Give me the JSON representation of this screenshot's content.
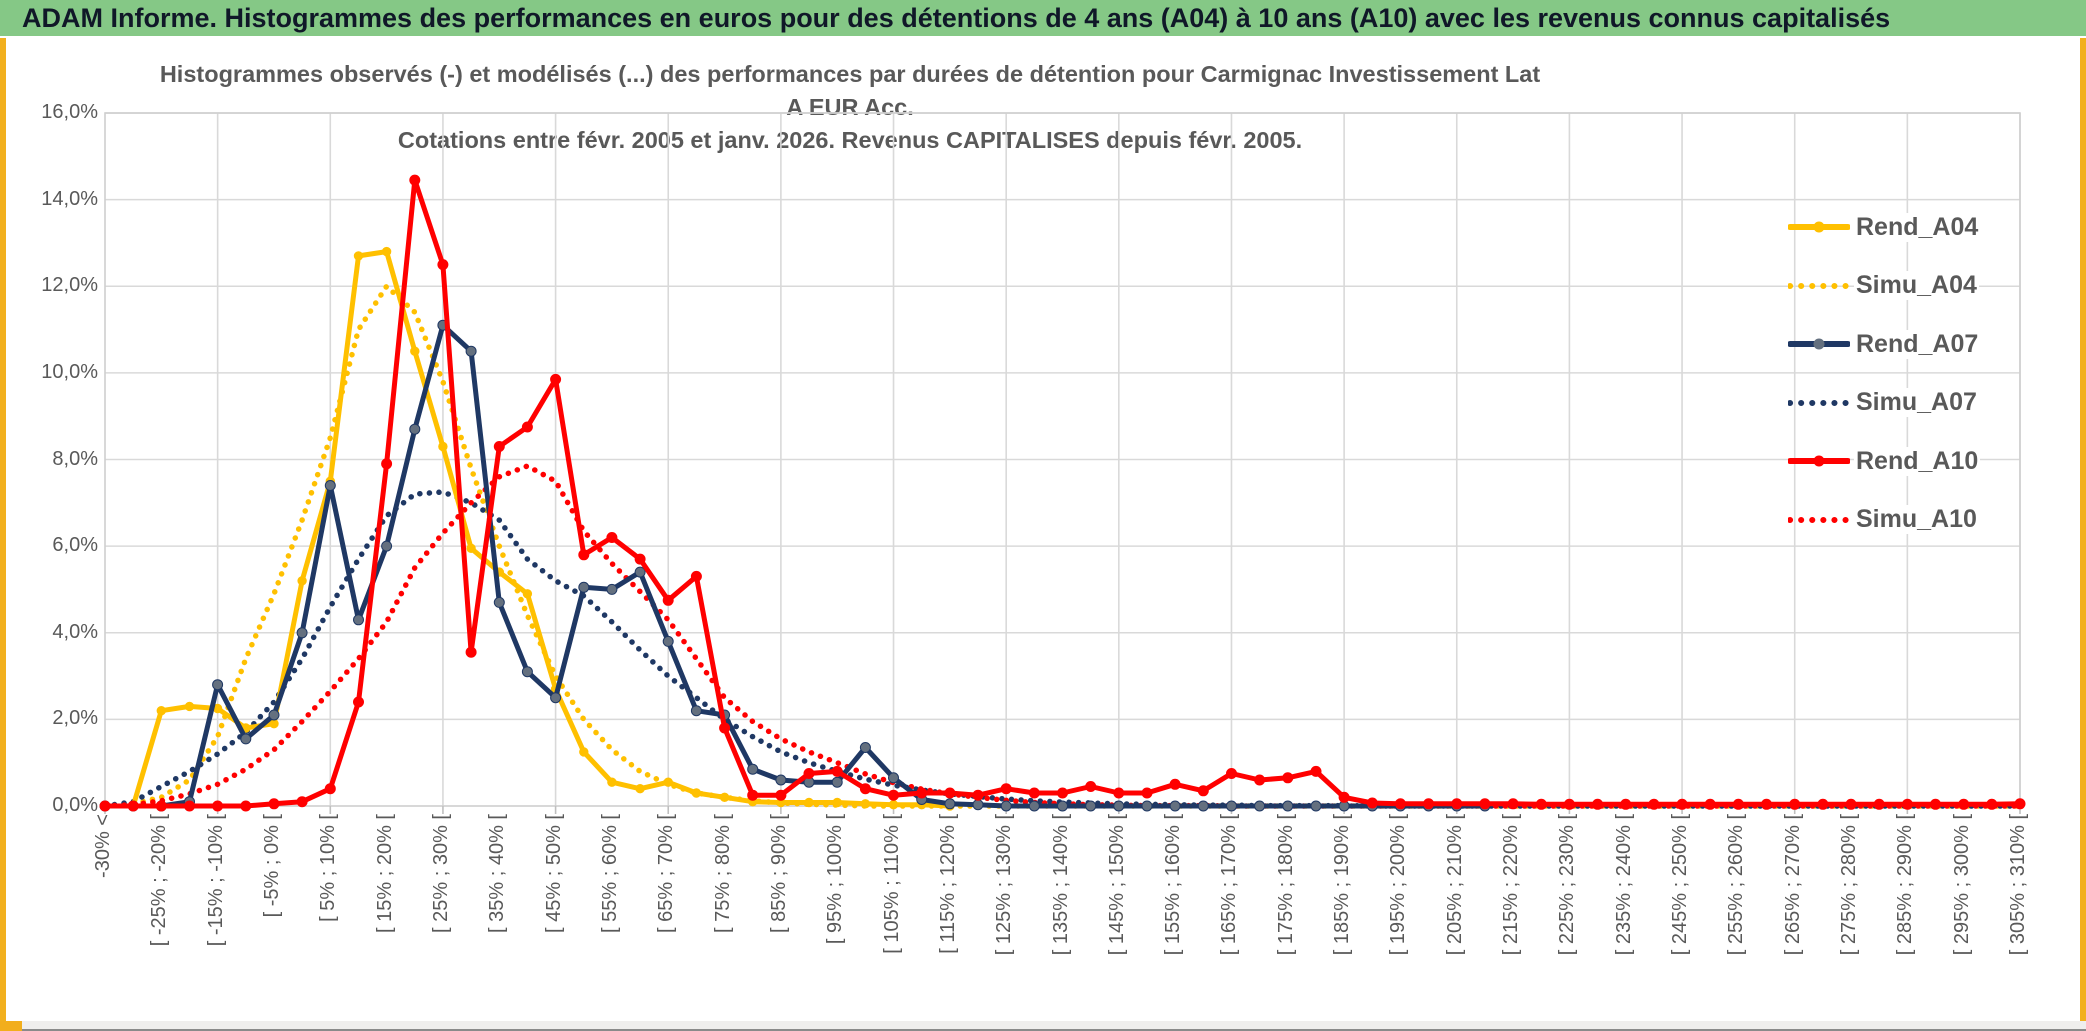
{
  "banner": {
    "text": "ADAM Informe. Histogrammes des performances en euros pour des détentions de 4 ans (A04) à 10 ans (A10) avec les revenus connus capitalisés"
  },
  "title": {
    "line1": "Histogrammes observés (-) et modélisés (...) des performances par durées de détention pour Carmignac Investissement Lat A EUR Acc.",
    "line2": "Cotations entre févr. 2005 et janv. 2026. Revenus CAPITALISES depuis févr. 2005."
  },
  "colors": {
    "gold": "#FFC000",
    "navy": "#1F3864",
    "navy_marker": "#64707F",
    "red": "#FF0000",
    "grid": "#D9D9D9",
    "axis_text": "#595959",
    "banner_bg": "#85C886",
    "edge": "#F2B01E"
  },
  "legend": {
    "entries": [
      {
        "label": "Rend_A04",
        "series": "Rend_A04",
        "style": "solid",
        "color": "#FFC000"
      },
      {
        "label": "Simu_A04",
        "series": "Simu_A04",
        "style": "dotted",
        "color": "#FFC000"
      },
      {
        "label": "Rend_A07",
        "series": "Rend_A07",
        "style": "solid",
        "color": "#1F3864"
      },
      {
        "label": "Simu_A07",
        "series": "Simu_A07",
        "style": "dotted",
        "color": "#1F3864"
      },
      {
        "label": "Rend_A10",
        "series": "Rend_A10",
        "style": "solid",
        "color": "#FF0000"
      },
      {
        "label": "Simu_A10",
        "series": "Simu_A10",
        "style": "dotted",
        "color": "#FF0000"
      }
    ]
  },
  "chart_data": {
    "type": "line",
    "title": "Histogrammes observés (-) et modélisés (...) des performances par durées de détention pour Carmignac Investissement Lat A EUR Acc. Cotations entre févr. 2005 et janv. 2026. Revenus CAPITALISES depuis févr. 2005.",
    "ylim": [
      0,
      16
    ],
    "y_tick_step": 2,
    "y_tick_labels": [
      "16,0%",
      "14,0%",
      "12,0%",
      "10,0%",
      "8,0%",
      "6,0%",
      "4,0%",
      "2,0%",
      "0,0%"
    ],
    "grid": true,
    "legend_position": "right-inside",
    "n_bins": 69,
    "bin_width_pct": 5,
    "x_tick_every": 2,
    "x_tick_labels": [
      "-30% <",
      "[ -25% ; -20% [",
      "[ -15% ; -10% [",
      "[ -5% ; 0% [",
      "[ 5% ; 10% [",
      "[ 15% ; 20% [",
      "[ 25% ; 30% [",
      "[ 35% ; 40% [",
      "[ 45% ; 50% [",
      "[ 55% ; 60% [",
      "[ 65% ; 70% [",
      "[ 75% ; 80% [",
      "[ 85% ; 90% [",
      "[ 95% ; 100% [",
      "[ 105% ; 110% [",
      "[ 115% ; 120% [",
      "[ 125% ; 130% [",
      "[ 135% ; 140% [",
      "[ 145% ; 150% [",
      "[ 155% ; 160% [",
      "[ 165% ; 170% [",
      "[ 175% ; 180% [",
      "[ 185% ; 190% [",
      "[ 195% ; 200% [",
      "[ 205% ; 210% [",
      "[ 215% ; 220% [",
      "[ 225% ; 230% [",
      "[ 235% ; 240% [",
      "[ 245% ; 250% [",
      "[ 255% ; 260% [",
      "[ 265% ; 270% [",
      "[ 275% ; 280% [",
      "[ 285% ; 290% [",
      "[ 295% ; 300% [",
      "[ 305% ; 310% ["
    ],
    "series": [
      {
        "name": "Simu_A04",
        "style": "dotted",
        "color": "#FFC000",
        "markers": false,
        "values": [
          0,
          0.05,
          0.2,
          0.6,
          1.6,
          3.4,
          4.9,
          6.6,
          8.5,
          11.0,
          12.0,
          11.4,
          9.8,
          7.8,
          6.0,
          4.4,
          3.0,
          2.0,
          1.3,
          0.8,
          0.5,
          0.3,
          0.2,
          0.12,
          0.07,
          0.04,
          0.02,
          0,
          0,
          0,
          0,
          0,
          0,
          0,
          0,
          0,
          0,
          0,
          0,
          0,
          0,
          0,
          0,
          0,
          0,
          0,
          0,
          0,
          0,
          0,
          0,
          0,
          0,
          0,
          0,
          0,
          0,
          0,
          0,
          0,
          0,
          0,
          0,
          0,
          0,
          0,
          0,
          0,
          0
        ]
      },
      {
        "name": "Simu_A07",
        "style": "dotted",
        "color": "#1F3864",
        "markers": false,
        "values": [
          0,
          0.1,
          0.45,
          0.8,
          1.2,
          1.7,
          2.4,
          3.4,
          4.6,
          5.7,
          6.7,
          7.2,
          7.25,
          7.0,
          6.6,
          5.7,
          5.2,
          4.85,
          4.25,
          3.6,
          3.0,
          2.5,
          2.0,
          1.6,
          1.25,
          1.0,
          0.8,
          0.62,
          0.48,
          0.37,
          0.28,
          0.22,
          0.16,
          0.12,
          0.09,
          0.07,
          0.05,
          0.04,
          0.03,
          0.02,
          0.02,
          0.01,
          0.01,
          0.01,
          0.01,
          0,
          0,
          0,
          0,
          0,
          0,
          0,
          0,
          0,
          0,
          0,
          0,
          0,
          0,
          0,
          0,
          0,
          0,
          0,
          0,
          0,
          0,
          0,
          0
        ]
      },
      {
        "name": "Simu_A10",
        "style": "dotted",
        "color": "#FF0000",
        "markers": false,
        "values": [
          0,
          0.03,
          0.12,
          0.28,
          0.5,
          0.85,
          1.3,
          1.95,
          2.65,
          3.4,
          4.25,
          5.5,
          6.3,
          7.0,
          7.6,
          7.85,
          7.5,
          6.35,
          5.6,
          4.95,
          4.3,
          3.4,
          2.5,
          1.95,
          1.55,
          1.25,
          1.0,
          0.74,
          0.54,
          0.39,
          0.28,
          0.2,
          0.13,
          0.08,
          0.05,
          0.03,
          0.02,
          0.01,
          0.01,
          0.01,
          0,
          0,
          0,
          0,
          0,
          0,
          0,
          0,
          0,
          0,
          0,
          0,
          0,
          0,
          0,
          0,
          0,
          0,
          0,
          0,
          0,
          0,
          0,
          0,
          0,
          0,
          0,
          0,
          0
        ]
      },
      {
        "name": "Rend_A04",
        "style": "solid",
        "color": "#FFC000",
        "markers": true,
        "marker_color": "#FFC000",
        "values": [
          0,
          0,
          2.2,
          2.3,
          2.25,
          1.8,
          1.9,
          5.2,
          7.5,
          12.7,
          12.8,
          10.5,
          8.3,
          5.95,
          5.4,
          4.9,
          2.7,
          1.25,
          0.55,
          0.4,
          0.55,
          0.3,
          0.2,
          0.1,
          0.08,
          0.08,
          0.08,
          0.05,
          0.03,
          0.03,
          0,
          null,
          null,
          null,
          null,
          null,
          null,
          null,
          null,
          null,
          null,
          null,
          null,
          null,
          null,
          null,
          null,
          null,
          null,
          null,
          null,
          null,
          null,
          null,
          null,
          null,
          null,
          null,
          null,
          null,
          null,
          null,
          null,
          null,
          null,
          null,
          null,
          null,
          null
        ]
      },
      {
        "name": "Rend_A07",
        "style": "solid",
        "color": "#1F3864",
        "markers": true,
        "marker_color": "#64707F",
        "values": [
          0,
          0,
          0,
          0.1,
          2.8,
          1.55,
          2.1,
          4.0,
          7.4,
          4.3,
          6.0,
          8.7,
          11.1,
          10.5,
          4.7,
          3.1,
          2.5,
          5.05,
          5.0,
          5.4,
          3.8,
          2.2,
          2.1,
          0.85,
          0.6,
          0.55,
          0.55,
          1.35,
          0.65,
          0.15,
          0.05,
          0.03,
          0,
          0,
          0,
          0,
          0,
          0,
          0,
          0,
          0,
          0,
          0,
          0,
          0,
          0,
          0,
          0,
          0,
          0,
          null,
          null,
          null,
          null,
          null,
          null,
          null,
          null,
          null,
          null,
          null,
          null,
          null,
          null,
          null,
          null,
          null,
          null,
          null
        ]
      },
      {
        "name": "Rend_A10",
        "style": "solid",
        "color": "#FF0000",
        "markers": true,
        "marker_color": "#FF0000",
        "values": [
          0,
          0,
          0,
          0,
          0,
          0,
          0.05,
          0.1,
          0.4,
          2.4,
          7.9,
          14.45,
          12.5,
          3.55,
          8.3,
          8.75,
          9.85,
          5.8,
          6.2,
          5.7,
          4.75,
          5.3,
          1.8,
          0.25,
          0.25,
          0.75,
          0.8,
          0.4,
          0.25,
          0.3,
          0.3,
          0.25,
          0.4,
          0.3,
          0.3,
          0.45,
          0.3,
          0.3,
          0.5,
          0.35,
          0.75,
          0.6,
          0.65,
          0.8,
          0.2,
          0.07,
          0.05,
          0.05,
          0.05,
          0.05,
          0.05,
          0.04,
          0.04,
          0.04,
          0.04,
          0.04,
          0.04,
          0.04,
          0.04,
          0.04,
          0.04,
          0.04,
          0.04,
          0.04,
          0.04,
          0.04,
          0.04,
          0.04,
          0.05
        ]
      }
    ]
  }
}
